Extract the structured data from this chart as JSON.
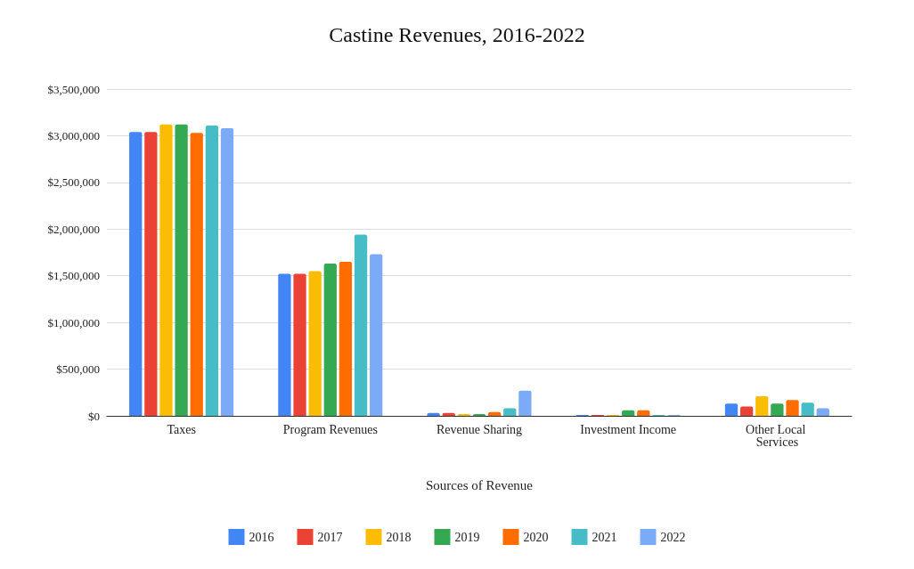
{
  "chart_data": {
    "type": "bar",
    "title": "Castine Revenues, 2016-2022",
    "xlabel": "Sources of Revenue",
    "categories": [
      "Taxes",
      "Program Revenues",
      "Revenue Sharing",
      "Investment Income",
      "Other Local Services"
    ],
    "series": [
      {
        "name": "2016",
        "color": "#4285f4",
        "values": [
          3040000,
          1520000,
          30000,
          10000,
          130000
        ]
      },
      {
        "name": "2017",
        "color": "#ea4335",
        "values": [
          3040000,
          1520000,
          30000,
          10000,
          100000
        ]
      },
      {
        "name": "2018",
        "color": "#fbbc04",
        "values": [
          3120000,
          1550000,
          20000,
          10000,
          210000
        ]
      },
      {
        "name": "2019",
        "color": "#34a853",
        "values": [
          3120000,
          1630000,
          20000,
          60000,
          130000
        ]
      },
      {
        "name": "2020",
        "color": "#ff6d01",
        "values": [
          3030000,
          1650000,
          40000,
          60000,
          170000
        ]
      },
      {
        "name": "2021",
        "color": "#46bdc6",
        "values": [
          3110000,
          1940000,
          80000,
          10000,
          140000
        ]
      },
      {
        "name": "2022",
        "color": "#7baaf7",
        "values": [
          3080000,
          1730000,
          270000,
          10000,
          80000
        ]
      }
    ],
    "ylim": [
      0,
      3500000
    ],
    "yticks": [
      {
        "value": 0,
        "label": "$0"
      },
      {
        "value": 500000,
        "label": "$500,000"
      },
      {
        "value": 1000000,
        "label": "$1,000,000"
      },
      {
        "value": 1500000,
        "label": "$1,500,000"
      },
      {
        "value": 2000000,
        "label": "$2,000,000"
      },
      {
        "value": 2500000,
        "label": "$2,500,000"
      },
      {
        "value": 3000000,
        "label": "$3,000,000"
      },
      {
        "value": 3500000,
        "label": "$3,500,000"
      }
    ],
    "grid": "y",
    "legend": "bottom"
  }
}
